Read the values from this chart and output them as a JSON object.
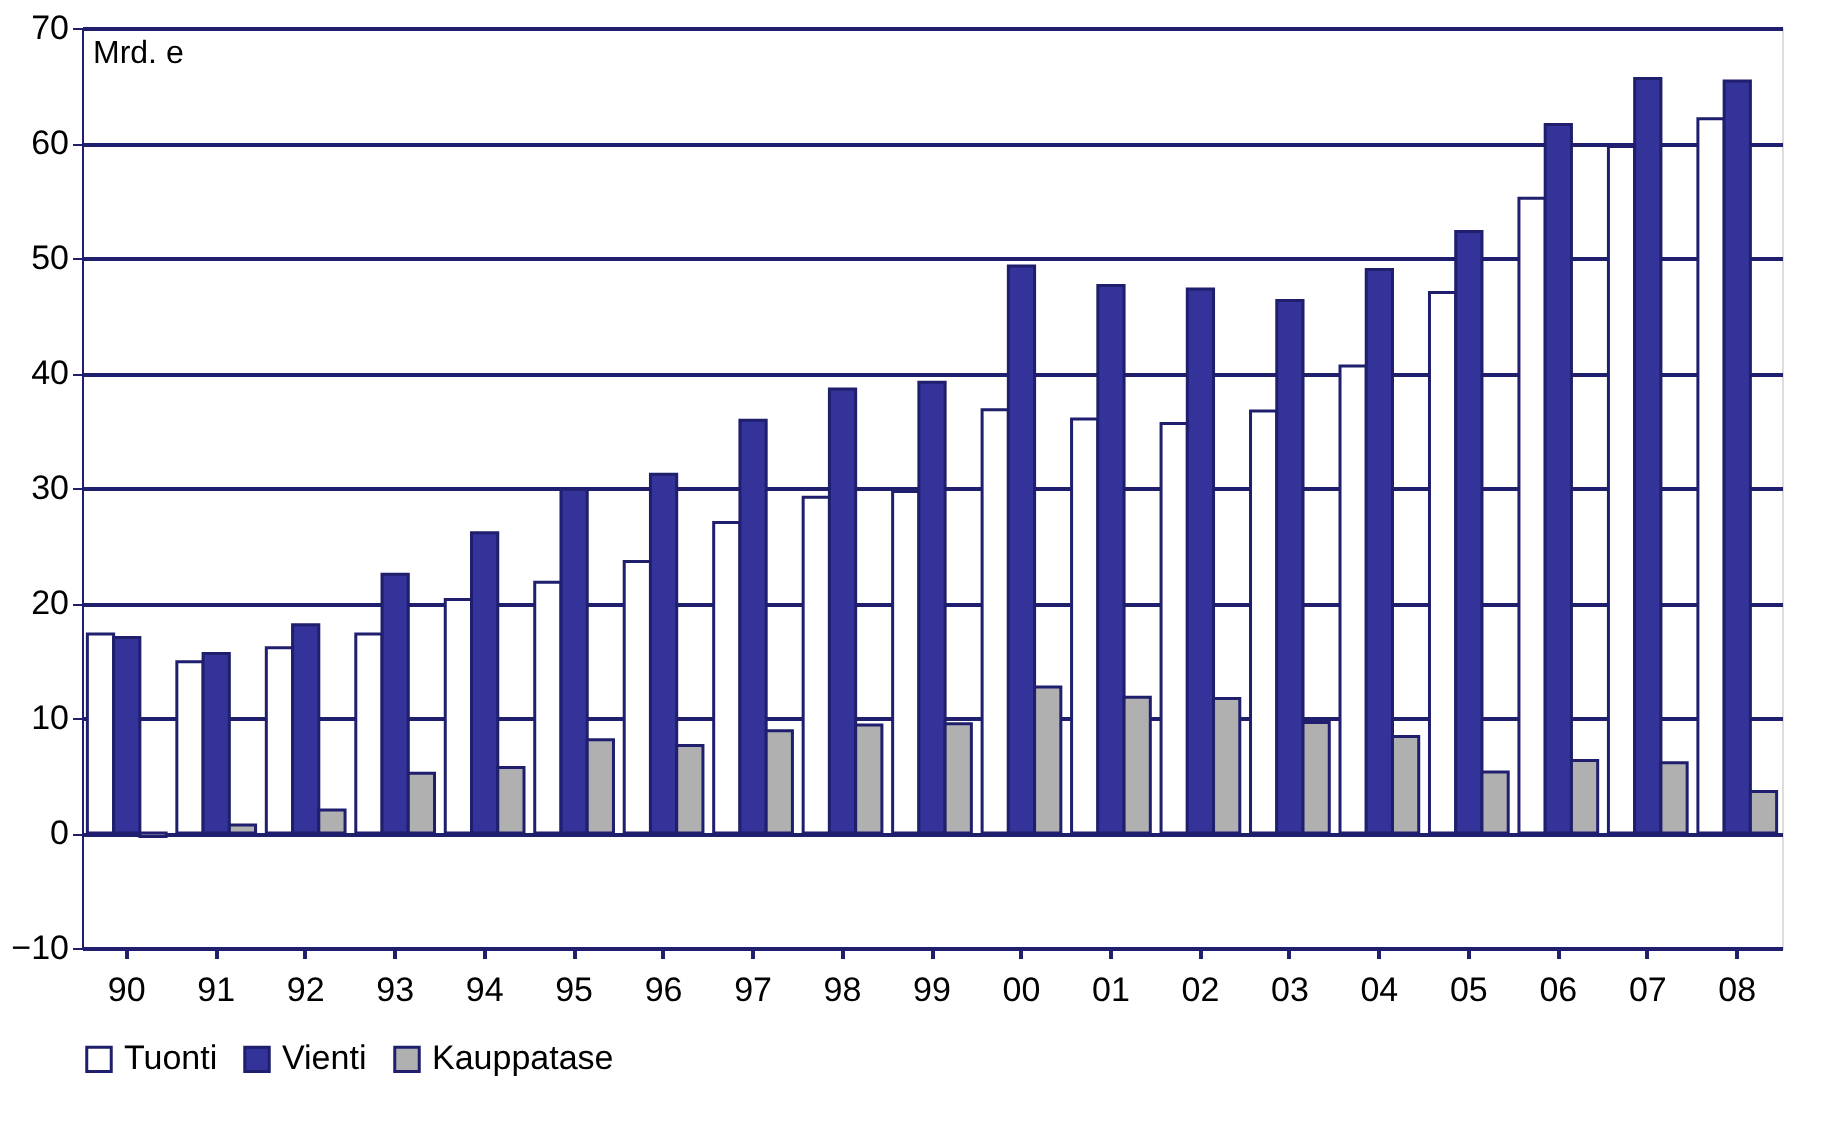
{
  "chart_data": {
    "type": "bar",
    "ylabel": "Mrd. e",
    "categories": [
      "90",
      "91",
      "92",
      "93",
      "94",
      "95",
      "96",
      "97",
      "98",
      "99",
      "00",
      "01",
      "02",
      "03",
      "04",
      "05",
      "06",
      "07",
      "08"
    ],
    "series": [
      {
        "name": "Tuonti",
        "color": "#ffffff",
        "values": [
          17.3,
          14.9,
          16.1,
          17.3,
          20.3,
          21.8,
          23.6,
          27.0,
          29.2,
          29.7,
          36.8,
          36.0,
          35.6,
          36.7,
          40.6,
          47.0,
          55.2,
          59.7,
          62.1
        ]
      },
      {
        "name": "Vienti",
        "color": "#333399",
        "values": [
          17.0,
          15.6,
          18.1,
          22.5,
          26.1,
          29.9,
          31.2,
          35.9,
          38.6,
          39.2,
          49.3,
          47.6,
          47.3,
          46.3,
          49.0,
          52.3,
          61.6,
          65.6,
          65.4
        ]
      },
      {
        "name": "Kauppatase",
        "color": "#b0b0b0",
        "values": [
          -0.3,
          0.7,
          2.0,
          5.2,
          5.7,
          8.1,
          7.6,
          8.9,
          9.4,
          9.5,
          12.7,
          11.8,
          11.7,
          9.6,
          8.4,
          5.3,
          6.3,
          6.1,
          3.6
        ]
      }
    ],
    "ylim": [
      -10,
      70
    ],
    "yticks": [
      -10,
      0,
      10,
      20,
      30,
      40,
      50,
      60,
      70
    ],
    "grid": "y",
    "legend": "bottom"
  }
}
